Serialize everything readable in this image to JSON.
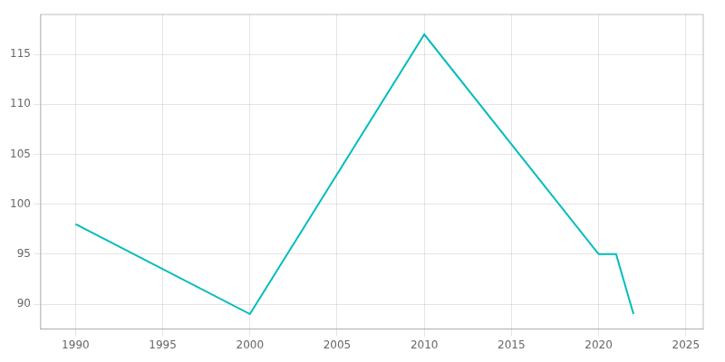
{
  "chart_data": {
    "type": "line",
    "x": [
      1990,
      2000,
      2010,
      2020,
      2021,
      2022
    ],
    "values": [
      98,
      89,
      117,
      95,
      95,
      89
    ],
    "color": "#00bcbc",
    "xlim": [
      1988,
      2026
    ],
    "ylim": [
      87.5,
      119
    ],
    "xticks": [
      1990,
      1995,
      2000,
      2005,
      2010,
      2015,
      2020,
      2025
    ],
    "yticks": [
      90,
      95,
      100,
      105,
      110,
      115
    ],
    "grid": true
  }
}
